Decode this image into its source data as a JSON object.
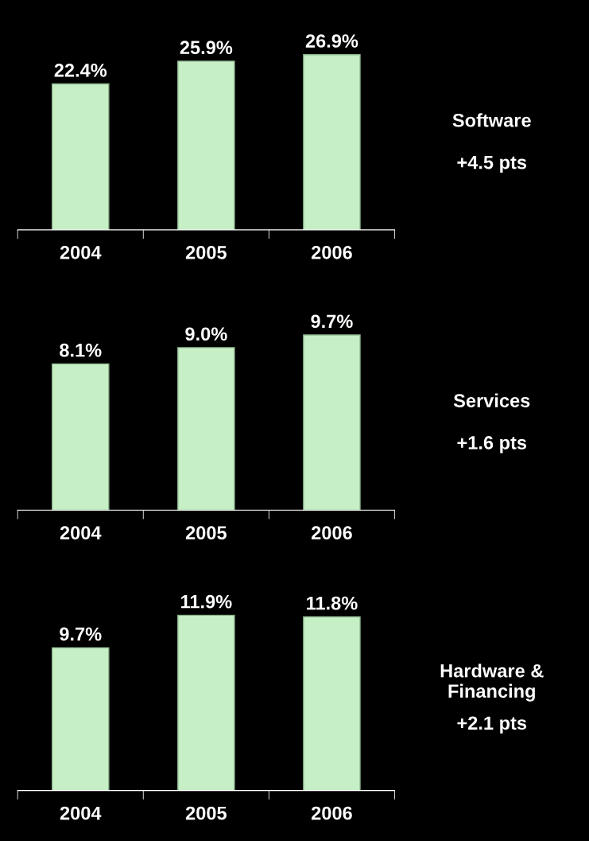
{
  "chart_data": [
    {
      "type": "bar",
      "categories": [
        "2004",
        "2005",
        "2006"
      ],
      "values": [
        22.4,
        25.9,
        26.9
      ],
      "value_labels": [
        "22.4%",
        "25.9%",
        "26.9%"
      ],
      "color": "#c6efc6",
      "annotations": [
        "Software",
        "+4.5 pts"
      ]
    },
    {
      "type": "bar",
      "categories": [
        "2004",
        "2005",
        "2006"
      ],
      "values": [
        8.1,
        9.0,
        9.7
      ],
      "value_labels": [
        "8.1%",
        "9.0%",
        "9.7%"
      ],
      "color": "#c6efc6",
      "annotations": [
        "Services",
        "+1.6 pts"
      ]
    },
    {
      "type": "bar",
      "categories": [
        "2004",
        "2005",
        "2006"
      ],
      "values": [
        9.7,
        11.9,
        11.8
      ],
      "value_labels": [
        "9.7%",
        "11.9%",
        "11.8%"
      ],
      "color": "#c6efc6",
      "annotations": [
        "Hardware &\nFinancing",
        "+2.1 pts"
      ]
    }
  ]
}
